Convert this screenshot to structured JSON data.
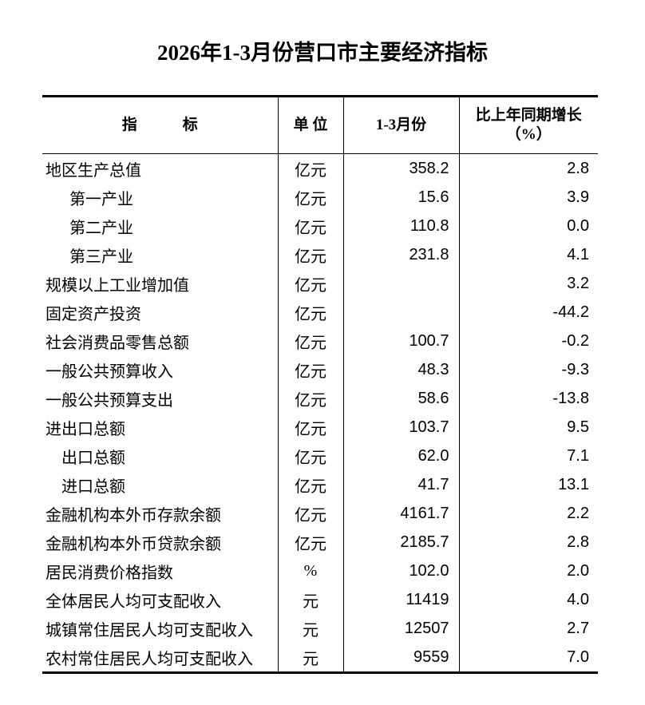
{
  "title": "2026年1-3月份营口市主要经济指标",
  "table": {
    "header": [
      "指　　　标",
      "单 位",
      "1-3月份",
      [
        "比上年同期增长",
        "（%）"
      ]
    ],
    "rows": [
      [
        "地区生产总值",
        "亿元",
        "358.2",
        "2.8"
      ],
      [
        "第一产业",
        "亿元",
        "15.6",
        "3.9"
      ],
      [
        "第二产业",
        "亿元",
        "110.8",
        "0.0"
      ],
      [
        "第三产业",
        "亿元",
        "231.8",
        "4.1"
      ],
      [
        "规模以上工业增加值",
        "亿元",
        null,
        "3.2"
      ],
      [
        "固定资产投资",
        "亿元",
        null,
        "-44.2"
      ],
      [
        "社会消费品零售总额",
        "亿元",
        "100.7",
        "-0.2"
      ],
      [
        "一般公共预算收入",
        "亿元",
        "48.3",
        "-9.3"
      ],
      [
        "一般公共预算支出",
        "亿元",
        "58.6",
        "-13.8"
      ],
      [
        "进出口总额",
        "亿元",
        "103.7",
        "9.5"
      ],
      [
        "出口总额",
        "亿元",
        "62.0",
        "7.1"
      ],
      [
        "进口总额",
        "亿元",
        "41.7",
        "13.1"
      ],
      [
        "金融机构本外币存款余额",
        "亿元",
        "4161.7",
        "2.2"
      ],
      [
        "金融机构本外币贷款余额",
        "亿元",
        "2185.7",
        "2.8"
      ],
      [
        "居民消费价格指数",
        "%",
        "102.0",
        "2.0"
      ],
      [
        "全体居民人均可支配收入",
        "元",
        "11419",
        "4.0"
      ],
      [
        "城镇常住居民人均可支配收入",
        "元",
        "12507",
        "2.7"
      ],
      [
        "农村常住居民人均可支配收入",
        "元",
        "9559",
        "7.0"
      ]
    ]
  }
}
